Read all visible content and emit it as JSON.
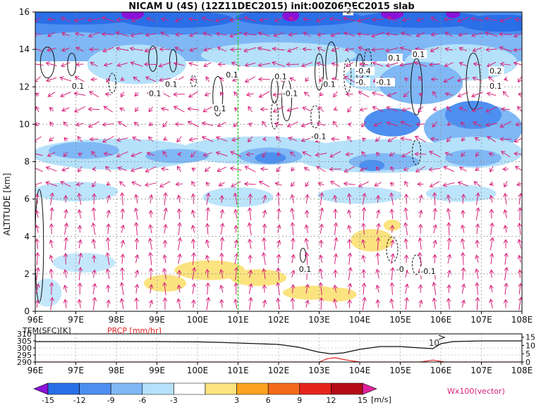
{
  "title": "NICAM  U  (4S)  (12Z11DEC2015)  init:00Z06DEC2015  slab",
  "colors": {
    "cbar": [
      "#8a12d8",
      "#2a6ee8",
      "#4d8ff0",
      "#7fb8f5",
      "#b5e1fa",
      "#ffffff",
      "#fbe37f",
      "#fba21f",
      "#f26a1a",
      "#e5241c",
      "#b30c16",
      "#e0229a"
    ],
    "vector": "#d8207a",
    "marker_line": "#22cc22",
    "prcp": "#e02020"
  },
  "chart_data": [
    {
      "type": "heatmap",
      "name": "U wind cross-section",
      "x_axis": {
        "range": [
          96,
          108
        ],
        "ticks": [
          "96E",
          "97E",
          "98E",
          "99E",
          "100E",
          "101E",
          "102E",
          "103E",
          "104E",
          "105E",
          "106E",
          "107E",
          "108E"
        ]
      },
      "y_axis": {
        "label": "ALTITUDE  [km]",
        "range": [
          0,
          16
        ],
        "ticks": [
          "0",
          "2",
          "4",
          "6",
          "8",
          "10",
          "12",
          "14",
          "16"
        ]
      },
      "contour_labels": [
        {
          "text": "0.1",
          "lon": 96.9,
          "alt": 11.9
        },
        {
          "text": "0.1",
          "lon": 98.8,
          "alt": 11.5
        },
        {
          "text": "0.1",
          "lon": 99.2,
          "alt": 12.0
        },
        {
          "text": "0.1",
          "lon": 100.7,
          "alt": 12.5
        },
        {
          "text": "0.1",
          "lon": 100.4,
          "alt": 10.7
        },
        {
          "text": "0.1",
          "lon": 101.9,
          "alt": 12.4
        },
        {
          "text": "-0.1",
          "lon": 102.1,
          "alt": 11.5
        },
        {
          "text": "0.1",
          "lon": 103.1,
          "alt": 12.0
        },
        {
          "text": "-0.1",
          "lon": 102.8,
          "alt": 9.2
        },
        {
          "text": "-0.4",
          "lon": 103.9,
          "alt": 12.7
        },
        {
          "text": "-0.",
          "lon": 103.9,
          "alt": 12.1
        },
        {
          "text": "-0.1",
          "lon": 104.4,
          "alt": 12.1
        },
        {
          "text": "0.1",
          "lon": 104.7,
          "alt": 13.4
        },
        {
          "text": "0.1",
          "lon": 105.3,
          "alt": 13.6
        },
        {
          "text": "0.2",
          "lon": 107.2,
          "alt": 12.7
        },
        {
          "text": "0.1",
          "lon": 107.2,
          "alt": 11.9
        },
        {
          "text": "0.1",
          "lon": 102.5,
          "alt": 2.1
        },
        {
          "text": "-0",
          "lon": 104.9,
          "alt": 2.1
        },
        {
          "text": "-0.1",
          "lon": 105.5,
          "alt": 2.0
        },
        {
          "text": "-2",
          "lon": 103.6,
          "alt": 15.9
        }
      ],
      "marker_lon": 101
    },
    {
      "type": "line",
      "name": "surface panel",
      "x_axis": {
        "range": [
          96,
          108
        ],
        "ticks": [
          "96E",
          "97E",
          "98E",
          "99E",
          "100E",
          "101E",
          "102E",
          "103E",
          "104E",
          "105E",
          "106E",
          "107E",
          "108E"
        ]
      },
      "series": [
        {
          "name": "TEM(SFC)[K]",
          "axis": "left",
          "x": [
            96,
            97,
            98,
            99,
            100,
            100.5,
            101,
            101.5,
            102,
            102.5,
            103,
            103.3,
            103.6,
            104,
            104.5,
            105,
            105.5,
            105.8,
            106,
            106.3,
            107,
            108
          ],
          "y": [
            304.5,
            304.5,
            304.5,
            304.5,
            304.3,
            304,
            303.5,
            303,
            302.5,
            300.5,
            297,
            295.8,
            296.5,
            299,
            301,
            301,
            300,
            299.5,
            303,
            304.5,
            305,
            305
          ]
        },
        {
          "name": "PRCP [mm/hr]",
          "axis": "right",
          "x": [
            96,
            102.5,
            103,
            103.2,
            103.4,
            103.6,
            104,
            105.5,
            105.8,
            106.1,
            108
          ],
          "y": [
            0,
            0,
            0,
            2,
            2.6,
            1.5,
            0,
            0,
            1.2,
            0,
            0
          ]
        }
      ],
      "y_left": {
        "range": [
          290,
          310
        ],
        "ticks": [
          "290",
          "295",
          "300",
          "305",
          "310"
        ]
      },
      "y_right": {
        "range": [
          0,
          17
        ],
        "ticks": [
          "0",
          "5",
          "10",
          "15"
        ]
      },
      "annotation": "10"
    }
  ],
  "colorbar": {
    "labels": [
      "-15",
      "-12",
      "-9",
      "-6",
      "-3",
      "3",
      "6",
      "9",
      "12",
      "15"
    ],
    "unit": "[m/s]",
    "vector_label": "Wx100(vector)"
  },
  "surface_legend": {
    "tem": "TEM(SFC)[K]",
    "prcp": "PRCP [mm/hr]"
  }
}
